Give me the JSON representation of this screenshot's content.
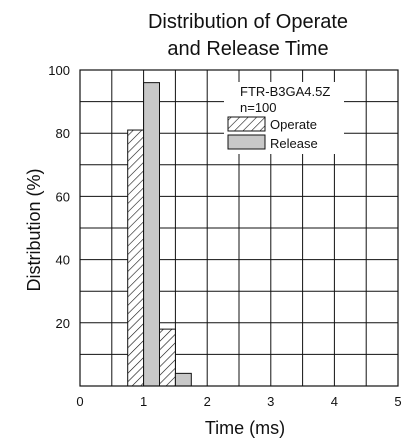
{
  "chart_data": {
    "type": "bar",
    "title": "Distribution of Operate and Release Time",
    "title_lines": [
      "Distribution of Operate",
      "and Release Time"
    ],
    "xlabel": "Time (ms)",
    "ylabel": "Distribution (%)",
    "xlim": [
      0,
      5
    ],
    "ylim": [
      0,
      100
    ],
    "x_ticks": [
      0,
      1,
      2,
      3,
      4,
      5
    ],
    "y_ticks": [
      20,
      40,
      60,
      80,
      100
    ],
    "grid": true,
    "bin_width": 0.25,
    "series": [
      {
        "name": "Operate",
        "bins": [
          {
            "x0": 0.75,
            "x1": 1.0,
            "value": 81
          },
          {
            "x0": 1.25,
            "x1": 1.5,
            "value": 18
          }
        ],
        "style": "hatch"
      },
      {
        "name": "Release",
        "bins": [
          {
            "x0": 1.0,
            "x1": 1.25,
            "value": 96
          },
          {
            "x0": 1.5,
            "x1": 1.75,
            "value": 4
          }
        ],
        "style": "gray",
        "color": "#c8c8c8"
      }
    ],
    "annotation_lines": [
      "FTR-B3GA4.5Z",
      "n=100"
    ],
    "legend_position": "top-right"
  }
}
